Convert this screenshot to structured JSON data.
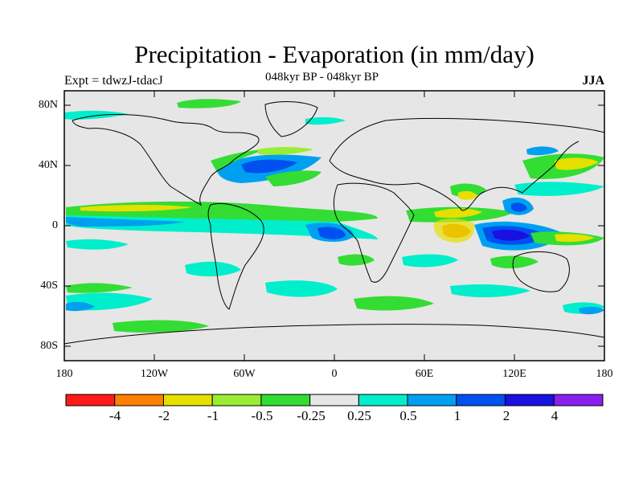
{
  "title": "Precipitation - Evaporation (in mm/day)",
  "subtitle": "048kyr BP - 048kyr BP",
  "experiment": "Expt = tdwzJ-tdacJ",
  "season": "JJA",
  "lat_labels": [
    "80N",
    "40N",
    "0",
    "40S",
    "80S"
  ],
  "lon_labels": [
    "180",
    "120W",
    "60W",
    "0",
    "60E",
    "120E",
    "180"
  ],
  "colorbar": {
    "labels": [
      "-4",
      "-2",
      "-1",
      "-0.5",
      "-0.25",
      "0.25",
      "0.5",
      "1",
      "2",
      "4"
    ],
    "colors": [
      "#ff1a1a",
      "#ff8000",
      "#e5e000",
      "#99ee33",
      "#33dd33",
      "#e6e6e6",
      "#00eecc",
      "#00a0f0",
      "#0050f0",
      "#1a10e0",
      "#8a20f0"
    ]
  },
  "background_color": "#e6e6e6"
}
